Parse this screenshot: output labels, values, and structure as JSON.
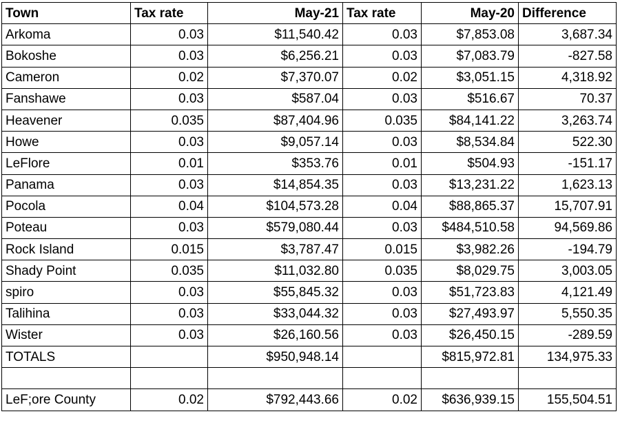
{
  "table": {
    "headers": [
      "Town",
      "Tax rate",
      "May-21",
      "Tax rate",
      "May-20",
      "Difference"
    ],
    "rows": [
      [
        "Arkoma",
        "0.03",
        "$11,540.42",
        "0.03",
        "$7,853.08",
        "3,687.34"
      ],
      [
        "Bokoshe",
        "0.03",
        "$6,256.21",
        "0.03",
        "$7,083.79",
        "-827.58"
      ],
      [
        "Cameron",
        "0.02",
        "$7,370.07",
        "0.02",
        "$3,051.15",
        "4,318.92"
      ],
      [
        "Fanshawe",
        "0.03",
        "$587.04",
        "0.03",
        "$516.67",
        "70.37"
      ],
      [
        "Heavener",
        "0.035",
        "$87,404.96",
        "0.035",
        "$84,141.22",
        "3,263.74"
      ],
      [
        "Howe",
        "0.03",
        "$9,057.14",
        "0.03",
        "$8,534.84",
        "522.30"
      ],
      [
        "LeFlore",
        "0.01",
        "$353.76",
        "0.01",
        "$504.93",
        "-151.17"
      ],
      [
        "Panama",
        "0.03",
        "$14,854.35",
        "0.03",
        "$13,231.22",
        "1,623.13"
      ],
      [
        "Pocola",
        "0.04",
        "$104,573.28",
        "0.04",
        "$88,865.37",
        "15,707.91"
      ],
      [
        "Poteau",
        "0.03",
        "$579,080.44",
        "0.03",
        "$484,510.58",
        "94,569.86"
      ],
      [
        "Rock Island",
        "0.015",
        "$3,787.47",
        "0.015",
        "$3,982.26",
        "-194.79"
      ],
      [
        "Shady Point",
        "0.035",
        "$11,032.80",
        "0.035",
        "$8,029.75",
        "3,003.05"
      ],
      [
        "spiro",
        "0.03",
        "$55,845.32",
        "0.03",
        "$51,723.83",
        "4,121.49"
      ],
      [
        "Talihina",
        "0.03",
        "$33,044.32",
        "0.03",
        "$27,493.97",
        "5,550.35"
      ],
      [
        "Wister",
        "0.03",
        "$26,160.56",
        "0.03",
        "$26,450.15",
        "-289.59"
      ],
      [
        "TOTALS",
        "",
        "$950,948.14",
        "",
        "$815,972.81",
        "134,975.33"
      ],
      [
        "",
        "",
        "",
        "",
        "",
        ""
      ],
      [
        "LeF;ore County",
        "0.02",
        "$792,443.66",
        "0.02",
        "$636,939.15",
        "155,504.51"
      ]
    ]
  }
}
